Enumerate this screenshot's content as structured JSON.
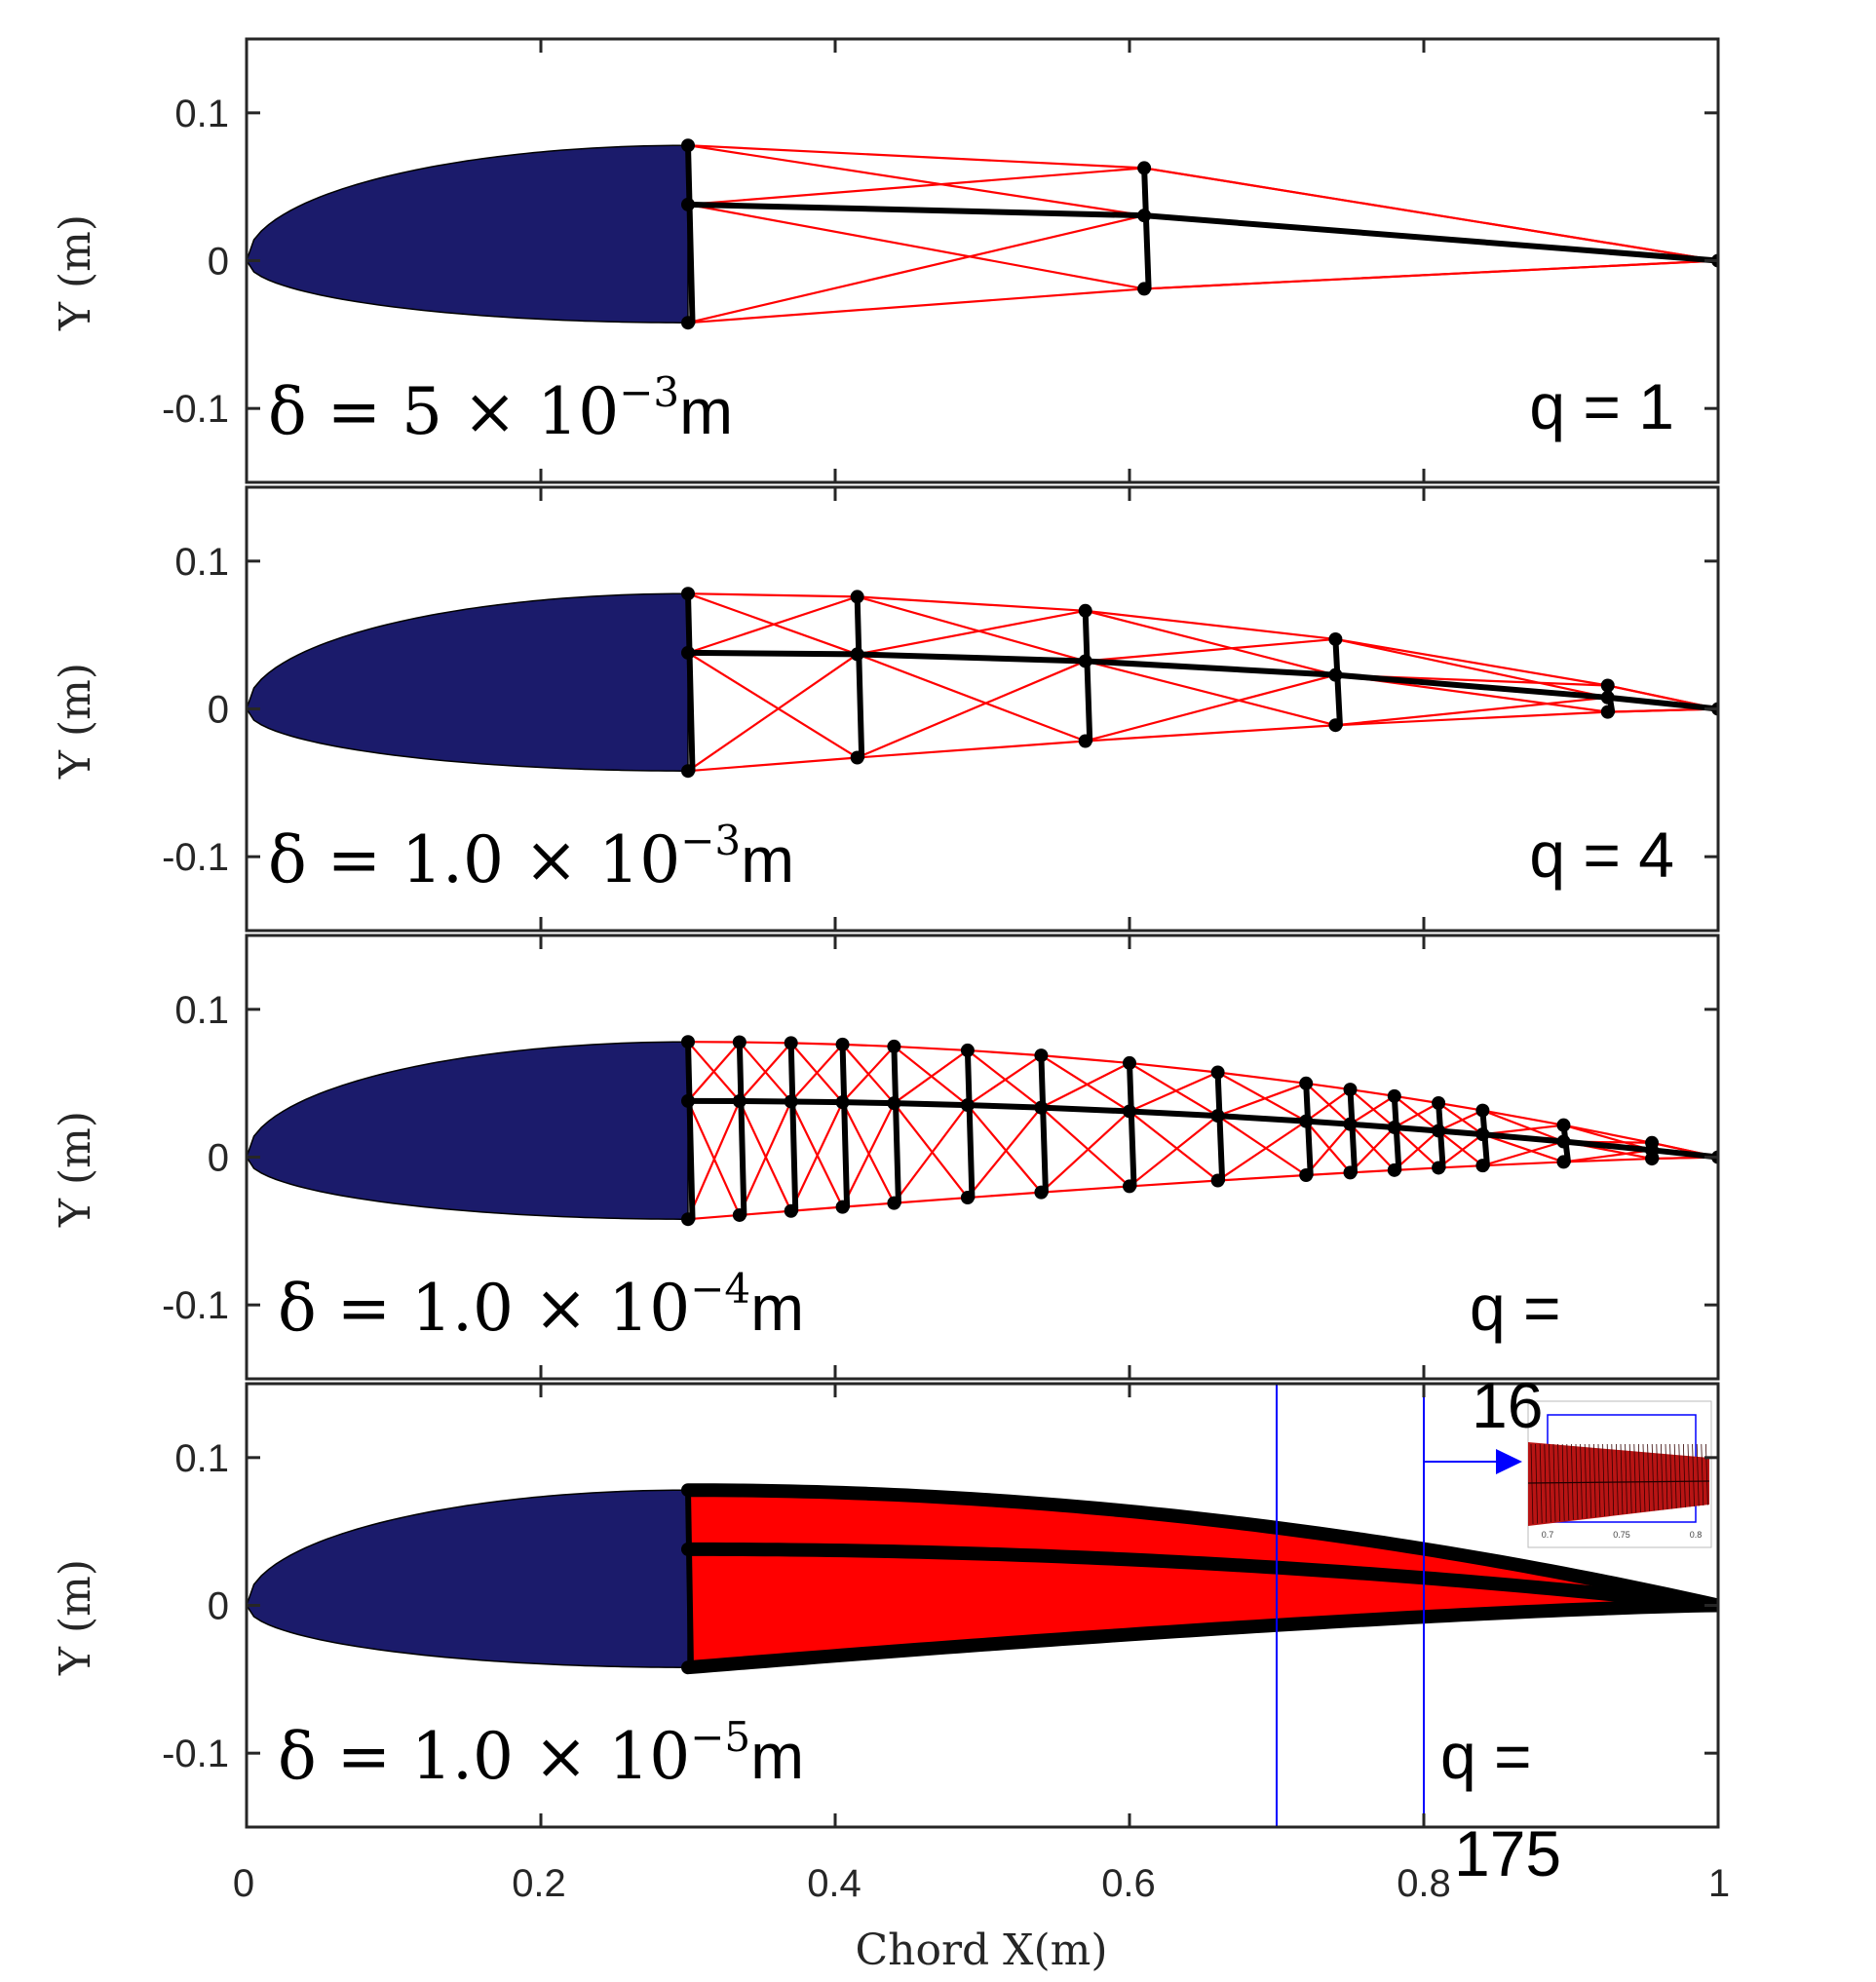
{
  "chart_data": {
    "type": "line",
    "description_axes": {
      "xlabel": "Chord X(m)",
      "ylabel": "Y (m)",
      "xlim": [
        0,
        1
      ],
      "ylim": [
        -0.15,
        0.15
      ],
      "x_ticks": [
        "0",
        "0.2",
        "0.4",
        "0.6",
        "0.8",
        "1"
      ],
      "y_ticks": [
        "0.1",
        "0",
        "-0.1"
      ]
    },
    "colors": {
      "airfoil_fill": "#1b1b6b",
      "truss_diagonal": "#ff0000",
      "truss_member": "#000000",
      "inset_box": "#0000ff"
    },
    "airfoil": {
      "leading_edge_x": 0,
      "spar_x": 0.3,
      "trailing_edge_x": 1,
      "upper_y_at_spar": 0.078,
      "lower_y_at_spar": -0.042,
      "camber_y_at_spar": 0.038
    },
    "panels": [
      {
        "delta": "δ = 5 × 10",
        "exp": "−3",
        "unit": "m",
        "q_label": "q = 1",
        "nodes_x": [
          0.3,
          0.61,
          1.0
        ]
      },
      {
        "delta": "δ = 1.0 × 10",
        "exp": "−3",
        "unit": "m",
        "q_label": "q = 4",
        "nodes_x": [
          0.3,
          0.415,
          0.57,
          0.74,
          0.925,
          1.0
        ]
      },
      {
        "delta": "δ = 1.0 × 10",
        "exp": "−4",
        "unit": "m",
        "q_label_line1": "q =",
        "q_label_line2": "16",
        "nodes_x": [
          0.3,
          0.335,
          0.37,
          0.405,
          0.44,
          0.49,
          0.54,
          0.6,
          0.66,
          0.72,
          0.75,
          0.78,
          0.81,
          0.84,
          0.895,
          0.955,
          1.0
        ]
      },
      {
        "delta": "δ = 1.0 × 10",
        "exp": "−5",
        "unit": "m",
        "q_label_line1": "q =",
        "q_label_line2": "175",
        "node_count": 175,
        "zoom_box_x": [
          0.7,
          0.8
        ],
        "zoom_box_y": [
          -0.15,
          0.15
        ],
        "inset_ticks": [
          "0.7",
          "0.75",
          "0.8"
        ]
      }
    ]
  }
}
